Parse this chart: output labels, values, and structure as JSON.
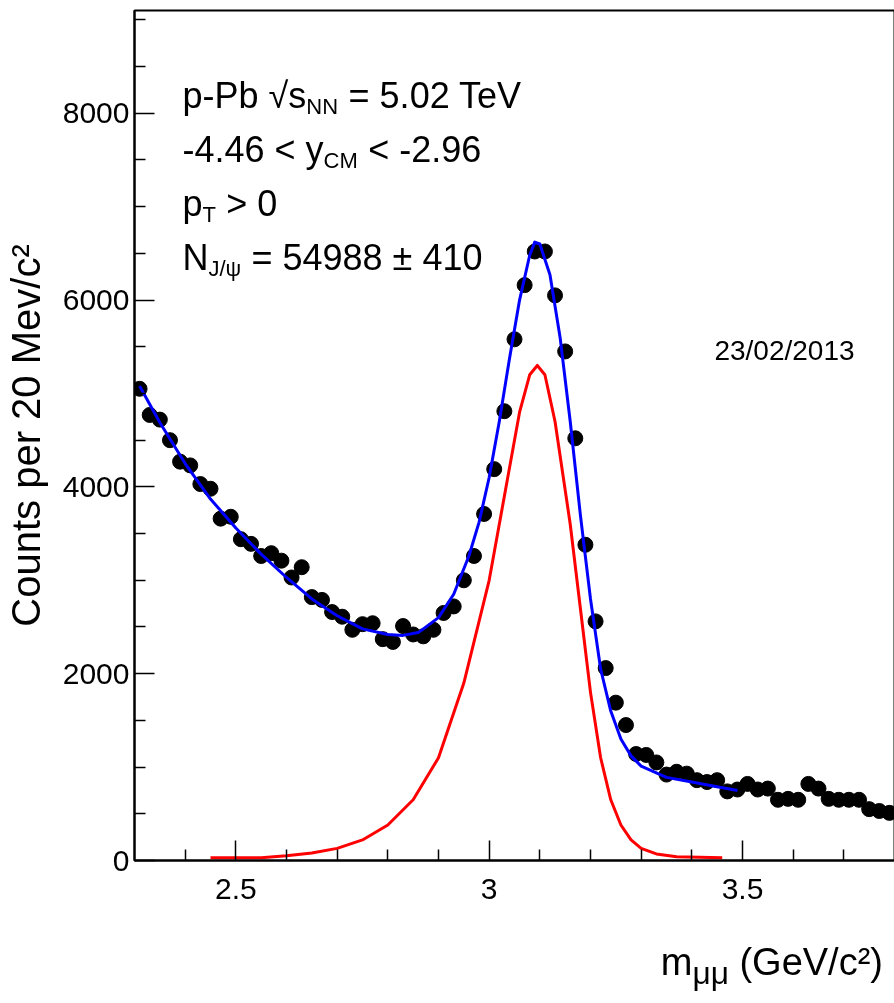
{
  "chart_data": {
    "type": "scatter",
    "xlabel": "m$_{μμ}$ (GeV/c²)",
    "ylabel": "Counts per 20 Mev/c²",
    "annotations": [
      "p-Pb √s$_{NN}$ = 5.02 TeV",
      "-4.46 < y$_{CM}$ < -2.96",
      "p$_{T}$ > 0",
      "N$_{J/ψ}$ = 54988 ± 410",
      "23/02/2013"
    ],
    "xlim": [
      2.3,
      3.8
    ],
    "ylim": [
      0,
      9100
    ],
    "xticks": [
      {
        "value": 2.4,
        "label": null
      },
      2.5,
      {
        "value": 2.6,
        "label": null
      },
      {
        "value": 2.7,
        "label": null
      },
      {
        "value": 2.8,
        "label": null
      },
      {
        "value": 2.9,
        "label": null
      },
      3,
      {
        "value": 3.1,
        "label": null
      },
      {
        "value": 3.2,
        "label": null
      },
      {
        "value": 3.3,
        "label": null
      },
      {
        "value": 3.4,
        "label": null
      },
      3.5,
      {
        "value": 3.6,
        "label": null
      },
      {
        "value": 3.7,
        "label": null
      }
    ],
    "yticks": [
      0,
      {
        "value": 500,
        "label": null
      },
      {
        "value": 1000,
        "label": null
      },
      {
        "value": 1500,
        "label": null
      },
      2000,
      {
        "value": 2500,
        "label": null
      },
      {
        "value": 3000,
        "label": null
      },
      {
        "value": 3500,
        "label": null
      },
      4000,
      {
        "value": 4500,
        "label": null
      },
      {
        "value": 5000,
        "label": null
      },
      {
        "value": 5500,
        "label": null
      },
      6000,
      {
        "value": 6500,
        "label": null
      },
      {
        "value": 7000,
        "label": null
      },
      {
        "value": 7500,
        "label": null
      },
      8000,
      {
        "value": 8500,
        "label": null
      },
      {
        "value": 9000,
        "label": null
      }
    ],
    "series": [
      {
        "marker": "circle",
        "color": "#000000",
        "x": [
          2.31,
          2.33,
          2.35,
          2.37,
          2.39,
          2.41,
          2.43,
          2.45,
          2.47,
          2.49,
          2.51,
          2.53,
          2.55,
          2.57,
          2.59,
          2.61,
          2.63,
          2.65,
          2.67,
          2.69,
          2.71,
          2.73,
          2.75,
          2.77,
          2.79,
          2.81,
          2.83,
          2.85,
          2.87,
          2.89,
          2.91,
          2.93,
          2.95,
          2.97,
          2.99,
          3.01,
          3.03,
          3.05,
          3.07,
          3.09,
          3.11,
          3.13,
          3.15,
          3.17,
          3.19,
          3.21,
          3.23,
          3.25,
          3.27,
          3.29,
          3.31,
          3.33,
          3.35,
          3.37,
          3.39,
          3.41,
          3.43,
          3.45,
          3.47,
          3.49,
          3.51,
          3.53,
          3.55,
          3.57,
          3.59,
          3.61,
          3.63,
          3.65,
          3.67,
          3.69,
          3.71,
          3.73,
          3.75,
          3.77,
          3.79
        ],
        "values": [
          5050,
          4770,
          4720,
          4500,
          4270,
          4230,
          4030,
          3980,
          3660,
          3680,
          3440,
          3390,
          3260,
          3290,
          3210,
          3030,
          3140,
          2820,
          2790,
          2660,
          2610,
          2470,
          2530,
          2540,
          2370,
          2340,
          2510,
          2420,
          2400,
          2470,
          2650,
          2720,
          3000,
          3260,
          3710,
          4190,
          4810,
          5580,
          6160,
          6520,
          6520,
          6050,
          5450,
          4520,
          3380,
          2560,
          2060,
          1690,
          1450,
          1140,
          1130,
          1050,
          920,
          950,
          930,
          860,
          840,
          860,
          740,
          760,
          820,
          760,
          770,
          650,
          660,
          650,
          820,
          770,
          660,
          650,
          650,
          650,
          550,
          530,
          510
        ],
        "xerrors": [
          0.01,
          0.01,
          0.01,
          0.01,
          0.01,
          0.01,
          0.01,
          0.01,
          0.01,
          0.01,
          0.01,
          0.01,
          0.01,
          0.01,
          0.01,
          0.01,
          0.01,
          0.01,
          0.01,
          0.01,
          0.01,
          0.01,
          0.01,
          0.01,
          0.01,
          0.01,
          0.01,
          0.01,
          0.01,
          0.01,
          0.01,
          0.01,
          0.01,
          0.01,
          0.01,
          0.01,
          0.01,
          0.01,
          0.01,
          0.01,
          0.01,
          0.01,
          0.01,
          0.01,
          0.01,
          0.01,
          0.01,
          0.01,
          0.01,
          0.01,
          0.01,
          0.01,
          0.01,
          0.01,
          0.01,
          0.01,
          0.01,
          0.01,
          0.01,
          0.01,
          0.01,
          0.01,
          0.01,
          0.01,
          0.01,
          0.01,
          0.01,
          0.01,
          0.01,
          0.01,
          0.01,
          0.01,
          0.01,
          0.01,
          0.01
        ]
      },
      {
        "type": "line",
        "color": "#ff0000",
        "x": [
          2.45,
          2.55,
          2.6,
          2.65,
          2.7,
          2.75,
          2.8,
          2.85,
          2.9,
          2.95,
          3.0,
          3.03,
          3.06,
          3.08,
          3.095,
          3.11,
          3.13,
          3.16,
          3.18,
          3.2,
          3.22,
          3.24,
          3.26,
          3.28,
          3.3,
          3.33,
          3.37,
          3.46
        ],
        "values": [
          30,
          30,
          50,
          80,
          130,
          220,
          380,
          650,
          1100,
          1900,
          3000,
          3900,
          4800,
          5200,
          5300,
          5200,
          4700,
          3600,
          2700,
          1800,
          1100,
          650,
          380,
          220,
          130,
          70,
          40,
          30
        ]
      },
      {
        "type": "line",
        "color": "#0000ff",
        "x": [
          2.31,
          2.35,
          2.4,
          2.45,
          2.5,
          2.55,
          2.6,
          2.65,
          2.7,
          2.75,
          2.8,
          2.83,
          2.86,
          2.9,
          2.93,
          2.96,
          2.98,
          3.0,
          3.02,
          3.04,
          3.06,
          3.08,
          3.09,
          3.1,
          3.12,
          3.14,
          3.16,
          3.18,
          3.2,
          3.22,
          3.24,
          3.26,
          3.28,
          3.3,
          3.35,
          3.4,
          3.45,
          3.49
        ],
        "values": [
          5080,
          4690,
          4250,
          3870,
          3560,
          3280,
          3030,
          2800,
          2620,
          2480,
          2420,
          2410,
          2440,
          2600,
          2850,
          3260,
          3620,
          4100,
          4700,
          5370,
          6000,
          6480,
          6620,
          6600,
          6270,
          5600,
          4700,
          3700,
          2800,
          2050,
          1600,
          1300,
          1120,
          1010,
          890,
          840,
          790,
          750
        ]
      }
    ]
  }
}
